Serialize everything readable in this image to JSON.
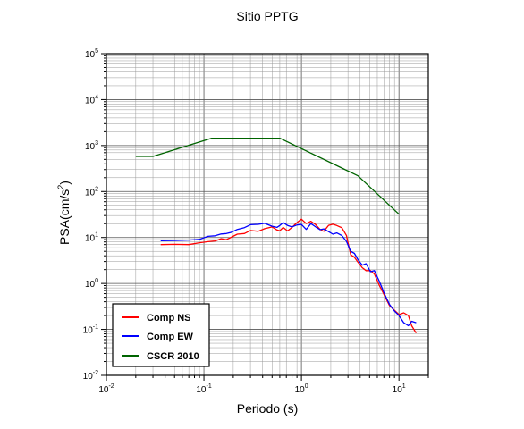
{
  "chart_data": {
    "type": "line",
    "title": "Sitio PPTG",
    "xlabel": "Periodo (s)",
    "ylabel_base": "PSA(cm/s",
    "ylabel_sup": "2",
    "ylabel_end": ")",
    "x_scale": "log",
    "y_scale": "log",
    "xlim": [
      0.01,
      20
    ],
    "ylim": [
      0.01,
      100000
    ],
    "grid": true,
    "legend_position": "bottom-left",
    "x_ticks": [
      {
        "value": 0.01,
        "base": "10",
        "exp": "-2"
      },
      {
        "value": 0.1,
        "base": "10",
        "exp": "-1"
      },
      {
        "value": 1,
        "base": "10",
        "exp": "0"
      },
      {
        "value": 10,
        "base": "10",
        "exp": "1"
      }
    ],
    "y_ticks": [
      {
        "value": 0.01,
        "base": "10",
        "exp": "-2"
      },
      {
        "value": 0.1,
        "base": "10",
        "exp": "-1"
      },
      {
        "value": 1,
        "base": "10",
        "exp": "0"
      },
      {
        "value": 10,
        "base": "10",
        "exp": "1"
      },
      {
        "value": 100,
        "base": "10",
        "exp": "2"
      },
      {
        "value": 1000,
        "base": "10",
        "exp": "3"
      },
      {
        "value": 10000,
        "base": "10",
        "exp": "4"
      },
      {
        "value": 100000,
        "base": "10",
        "exp": "5"
      }
    ],
    "series": [
      {
        "name": "Comp NS",
        "color": "#ff0000",
        "points": [
          [
            0.036,
            7.0
          ],
          [
            0.05,
            7.1
          ],
          [
            0.07,
            7.0
          ],
          [
            0.09,
            7.7
          ],
          [
            0.11,
            8.1
          ],
          [
            0.13,
            8.4
          ],
          [
            0.15,
            9.4
          ],
          [
            0.17,
            9.0
          ],
          [
            0.19,
            10.1
          ],
          [
            0.22,
            11.8
          ],
          [
            0.26,
            12.2
          ],
          [
            0.3,
            14.2
          ],
          [
            0.36,
            13.6
          ],
          [
            0.42,
            15.5
          ],
          [
            0.5,
            17.0
          ],
          [
            0.56,
            14.6
          ],
          [
            0.6,
            14.0
          ],
          [
            0.65,
            16.5
          ],
          [
            0.72,
            13.9
          ],
          [
            0.8,
            16.5
          ],
          [
            0.9,
            21.0
          ],
          [
            1.0,
            25.0
          ],
          [
            1.12,
            20.0
          ],
          [
            1.25,
            22.5
          ],
          [
            1.4,
            19.0
          ],
          [
            1.55,
            15.0
          ],
          [
            1.7,
            13.6
          ],
          [
            1.9,
            18.4
          ],
          [
            2.1,
            19.4
          ],
          [
            2.3,
            18.2
          ],
          [
            2.6,
            16.2
          ],
          [
            2.9,
            11.0
          ],
          [
            3.2,
            4.2
          ],
          [
            3.5,
            3.7
          ],
          [
            3.8,
            2.9
          ],
          [
            4.2,
            2.2
          ],
          [
            4.6,
            1.9
          ],
          [
            5.1,
            1.9
          ],
          [
            5.6,
            1.6
          ],
          [
            6.3,
            0.9
          ],
          [
            7.1,
            0.55
          ],
          [
            8.0,
            0.33
          ],
          [
            9.0,
            0.26
          ],
          [
            10.0,
            0.21
          ],
          [
            11.2,
            0.23
          ],
          [
            12.5,
            0.2
          ],
          [
            13.5,
            0.12
          ],
          [
            15.0,
            0.083
          ]
        ]
      },
      {
        "name": "Comp EW",
        "color": "#0000ff",
        "points": [
          [
            0.036,
            8.5
          ],
          [
            0.05,
            8.6
          ],
          [
            0.07,
            8.8
          ],
          [
            0.09,
            9.1
          ],
          [
            0.11,
            10.6
          ],
          [
            0.13,
            10.9
          ],
          [
            0.15,
            11.9
          ],
          [
            0.17,
            12.2
          ],
          [
            0.19,
            12.9
          ],
          [
            0.22,
            15.0
          ],
          [
            0.26,
            16.4
          ],
          [
            0.3,
            19.0
          ],
          [
            0.36,
            19.3
          ],
          [
            0.42,
            20.3
          ],
          [
            0.5,
            17.6
          ],
          [
            0.56,
            16.6
          ],
          [
            0.6,
            18.2
          ],
          [
            0.65,
            21.0
          ],
          [
            0.72,
            18.3
          ],
          [
            0.8,
            17.0
          ],
          [
            0.9,
            18.7
          ],
          [
            1.0,
            19.2
          ],
          [
            1.12,
            15.0
          ],
          [
            1.25,
            20.0
          ],
          [
            1.4,
            17.0
          ],
          [
            1.55,
            14.8
          ],
          [
            1.7,
            15.4
          ],
          [
            1.9,
            13.4
          ],
          [
            2.1,
            11.8
          ],
          [
            2.3,
            12.6
          ],
          [
            2.6,
            11.0
          ],
          [
            2.9,
            8.2
          ],
          [
            3.2,
            5.0
          ],
          [
            3.5,
            4.5
          ],
          [
            3.8,
            3.3
          ],
          [
            4.2,
            2.5
          ],
          [
            4.6,
            2.7
          ],
          [
            5.1,
            1.8
          ],
          [
            5.6,
            1.9
          ],
          [
            6.3,
            1.1
          ],
          [
            7.1,
            0.6
          ],
          [
            8.0,
            0.35
          ],
          [
            9.0,
            0.25
          ],
          [
            10.0,
            0.2
          ],
          [
            11.2,
            0.14
          ],
          [
            12.5,
            0.12
          ],
          [
            13.5,
            0.15
          ],
          [
            15.0,
            0.14
          ]
        ]
      },
      {
        "name": "CSCR 2010",
        "color": "#006400",
        "points": [
          [
            0.02,
            580
          ],
          [
            0.03,
            580
          ],
          [
            0.12,
            1450
          ],
          [
            0.6,
            1450
          ],
          [
            3.8,
            220
          ],
          [
            10.0,
            32
          ]
        ]
      }
    ]
  }
}
